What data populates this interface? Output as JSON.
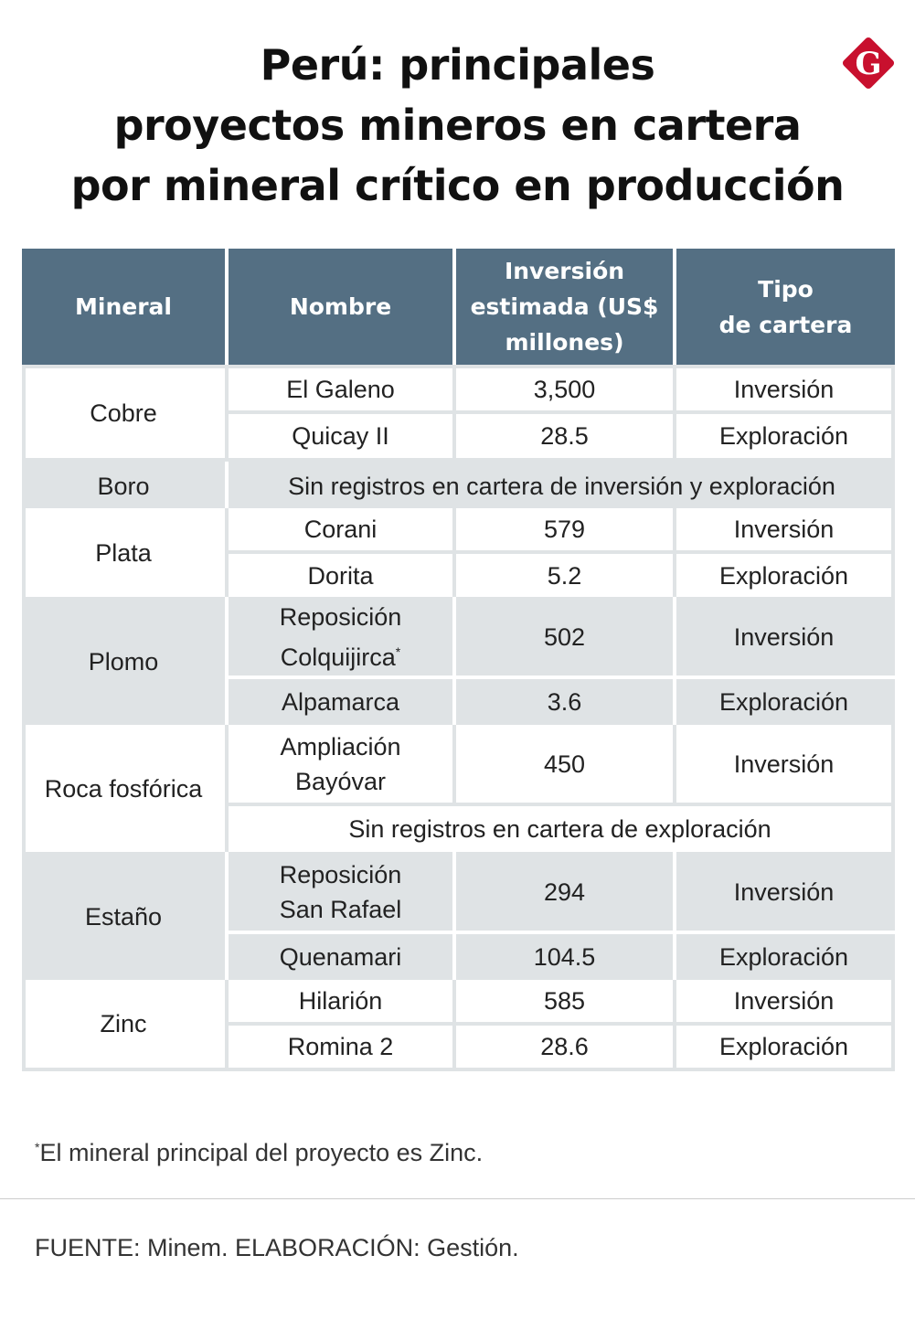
{
  "title": {
    "line1": "Perú: principales",
    "line2": "proyectos mineros en cartera",
    "line3": "por mineral crítico en producción"
  },
  "logo": {
    "letter": "G",
    "color": "#c8102e",
    "icon": "gestion-logo-icon"
  },
  "table": {
    "headers": {
      "mineral": "Mineral",
      "nombre": "Nombre",
      "inversion_l1": "Inversión",
      "inversion_l2": "estimada (US$",
      "inversion_l3": "millones)",
      "tipo_l1": "Tipo",
      "tipo_l2": "de cartera"
    },
    "cobre": {
      "mineral": "Cobre",
      "rows": [
        {
          "nombre": "El Galeno",
          "inversion": "3,500",
          "tipo": "Inversión"
        },
        {
          "nombre": "Quicay II",
          "inversion": "28.5",
          "tipo": "Exploración"
        }
      ]
    },
    "boro": {
      "mineral": "Boro",
      "note": "Sin registros en cartera de inversión y exploración"
    },
    "plata": {
      "mineral": "Plata",
      "rows": [
        {
          "nombre": "Corani",
          "inversion": "579",
          "tipo": "Inversión"
        },
        {
          "nombre": "Dorita",
          "inversion": "5.2",
          "tipo": "Exploración"
        }
      ]
    },
    "plomo": {
      "mineral": "Plomo",
      "rows": [
        {
          "nombre_l1": "Reposición",
          "nombre_l2": "Colquijirca",
          "nombre_mark": "*",
          "inversion": "502",
          "tipo": "Inversión"
        },
        {
          "nombre": "Alpamarca",
          "inversion": "3.6",
          "tipo": "Exploración"
        }
      ]
    },
    "roca": {
      "mineral": "Roca fosfórica",
      "rows": [
        {
          "nombre_l1": "Ampliación",
          "nombre_l2": "Bayóvar",
          "inversion": "450",
          "tipo": "Inversión"
        }
      ],
      "note": "Sin registros en cartera de exploración"
    },
    "estano": {
      "mineral": "Estaño",
      "rows": [
        {
          "nombre_l1": "Reposición",
          "nombre_l2": "San Rafael",
          "inversion": "294",
          "tipo": "Inversión"
        },
        {
          "nombre": "Quenamari",
          "inversion": "104.5",
          "tipo": "Exploración"
        }
      ]
    },
    "zinc": {
      "mineral": "Zinc",
      "rows": [
        {
          "nombre": "Hilarión",
          "inversion": "585",
          "tipo": "Inversión"
        },
        {
          "nombre": "Romina 2",
          "inversion": "28.6",
          "tipo": "Exploración"
        }
      ]
    }
  },
  "footnote": {
    "mark": "*",
    "text": "El mineral principal del proyecto es Zinc."
  },
  "source": "FUENTE: Minem. ELABORACIÓN: Gestión."
}
